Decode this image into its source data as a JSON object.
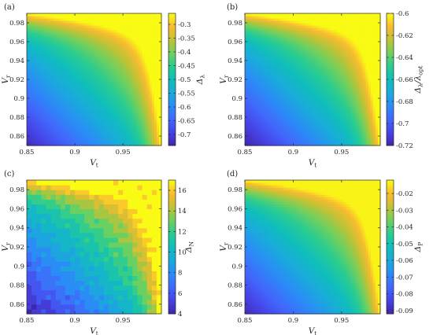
{
  "chart_data": [
    {
      "type": "heatmap",
      "panel_label": "(a)",
      "xlabel": "V_t",
      "ylabel": "V_r",
      "xlim": [
        0.85,
        0.99
      ],
      "ylim": [
        0.85,
        0.99
      ],
      "x_ticks": [
        "0.85",
        "0.9",
        "0.95"
      ],
      "y_ticks": [
        "0.86",
        "0.88",
        "0.9",
        "0.92",
        "0.94",
        "0.96",
        "0.98"
      ],
      "colorbar": {
        "label": "Δ_λ",
        "min": -0.74,
        "max": -0.26,
        "ticks": [
          "-0.3",
          "-0.35",
          "-0.4",
          "-0.45",
          "-0.5",
          "-0.55",
          "-0.6",
          "-0.65",
          "-0.7"
        ]
      },
      "value_range": [
        -0.73,
        -0.26
      ]
    },
    {
      "type": "heatmap",
      "panel_label": "(b)",
      "xlabel": "V_t",
      "ylabel": "V_r",
      "xlim": [
        0.85,
        0.99
      ],
      "ylim": [
        0.85,
        0.99
      ],
      "x_ticks": [
        "0.85",
        "0.9",
        "0.95"
      ],
      "y_ticks": [
        "0.86",
        "0.88",
        "0.9",
        "0.92",
        "0.94",
        "0.96",
        "0.98"
      ],
      "colorbar": {
        "label": "Δ_λ/λ_opt",
        "min": -0.72,
        "max": -0.6,
        "ticks": [
          "-0.6",
          "-0.62",
          "-0.64",
          "-0.66",
          "-0.68",
          "-0.7",
          "-0.72"
        ]
      },
      "value_range": [
        -0.72,
        -0.6
      ]
    },
    {
      "type": "heatmap",
      "panel_label": "(c)",
      "xlabel": "V_t",
      "ylabel": "V_r",
      "xlim": [
        0.85,
        0.99
      ],
      "ylim": [
        0.85,
        0.99
      ],
      "x_ticks": [
        "0.85",
        "0.9",
        "0.95"
      ],
      "y_ticks": [
        "0.86",
        "0.88",
        "0.9",
        "0.92",
        "0.94",
        "0.96",
        "0.98"
      ],
      "colorbar": {
        "label": "Δ_N",
        "min": 4,
        "max": 17,
        "ticks": [
          "4",
          "6",
          "8",
          "10",
          "12",
          "14",
          "16"
        ]
      },
      "value_range": [
        4,
        17
      ],
      "discrete": true
    },
    {
      "type": "heatmap",
      "panel_label": "(d)",
      "xlabel": "V_t",
      "ylabel": "V_r",
      "xlim": [
        0.85,
        0.99
      ],
      "ylim": [
        0.85,
        0.99
      ],
      "x_ticks": [
        "0.85",
        "0.9",
        "0.95"
      ],
      "y_ticks": [
        "0.86",
        "0.88",
        "0.9",
        "0.92",
        "0.94",
        "0.96",
        "0.98"
      ],
      "colorbar": {
        "label": "Δ_P",
        "min": -0.092,
        "max": -0.012,
        "ticks": [
          "-0.02",
          "-0.03",
          "-0.04",
          "-0.05",
          "-0.06",
          "-0.07",
          "-0.08",
          "-0.09"
        ]
      },
      "value_range": [
        -0.09,
        -0.013
      ]
    }
  ]
}
